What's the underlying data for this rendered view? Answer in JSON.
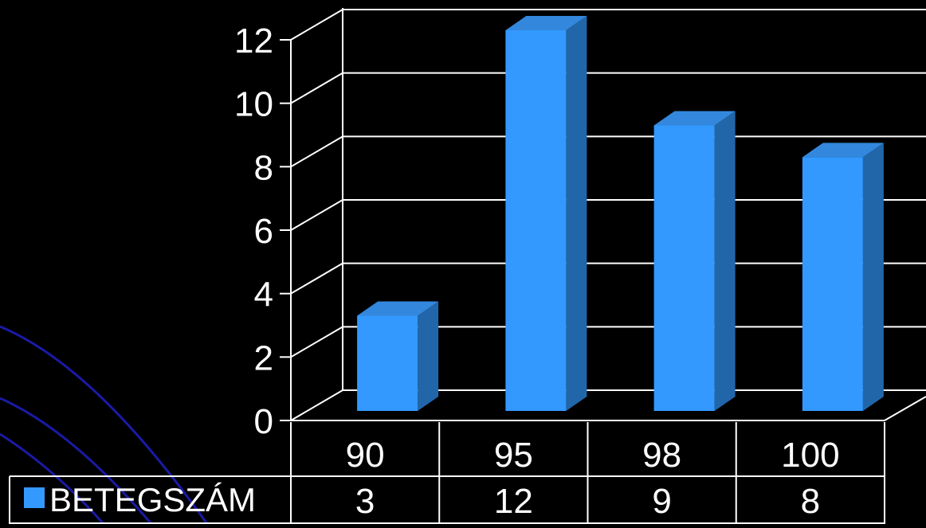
{
  "chart_data": {
    "type": "bar",
    "categories": [
      "90",
      "95",
      "98",
      "100"
    ],
    "series": [
      {
        "name": "BETEGSZÁM",
        "values": [
          3,
          12,
          9,
          8
        ]
      }
    ],
    "ylim": [
      0,
      12
    ],
    "yticks": [
      0,
      2,
      4,
      6,
      8,
      10,
      12
    ],
    "grid": true,
    "legend": "data-table-left",
    "data_table": true,
    "colors": {
      "background": "#000000",
      "bar_front": "#3399ff",
      "bar_side": "#2266aa",
      "bar_top": "#3388dd",
      "grid": "#ffffff",
      "decorative_lines": "#1a1aa6"
    }
  }
}
